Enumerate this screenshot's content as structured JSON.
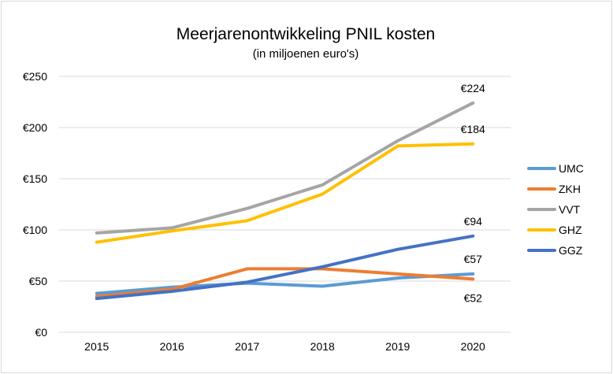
{
  "chart_data": {
    "type": "line",
    "title": "Meerjarenontwikkeling PNIL kosten",
    "subtitle": "(in miljoenen euro's)",
    "xlabel": "",
    "ylabel": "",
    "x": [
      "2015",
      "2016",
      "2017",
      "2018",
      "2019",
      "2020"
    ],
    "ylim": [
      0,
      250
    ],
    "yticks": [
      0,
      50,
      100,
      150,
      200,
      250
    ],
    "ytick_labels": [
      "€0",
      "€50",
      "€100",
      "€150",
      "€200",
      "€250"
    ],
    "grid": true,
    "legend_position": "right",
    "series": [
      {
        "name": "UMC",
        "color": "#5b9bd5",
        "values": [
          38,
          44,
          48,
          45,
          53,
          57
        ]
      },
      {
        "name": "ZKH",
        "color": "#ed7d31",
        "values": [
          35,
          42,
          62,
          62,
          57,
          52
        ]
      },
      {
        "name": "VVT",
        "color": "#a5a5a5",
        "values": [
          97,
          102,
          121,
          144,
          187,
          224
        ]
      },
      {
        "name": "GHZ",
        "color": "#ffc000",
        "values": [
          88,
          99,
          109,
          135,
          182,
          184
        ]
      },
      {
        "name": "GGZ",
        "color": "#4472c4",
        "values": [
          33,
          40,
          49,
          64,
          81,
          94
        ]
      }
    ],
    "annotations": [
      {
        "series": "VVT",
        "x": "2020",
        "text": "€224",
        "side": "above"
      },
      {
        "series": "GHZ",
        "x": "2020",
        "text": "€184",
        "side": "above"
      },
      {
        "series": "GGZ",
        "x": "2020",
        "text": "€94",
        "side": "above"
      },
      {
        "series": "UMC",
        "x": "2020",
        "text": "€57",
        "side": "above"
      },
      {
        "series": "ZKH",
        "x": "2020",
        "text": "€52",
        "side": "below"
      }
    ]
  }
}
